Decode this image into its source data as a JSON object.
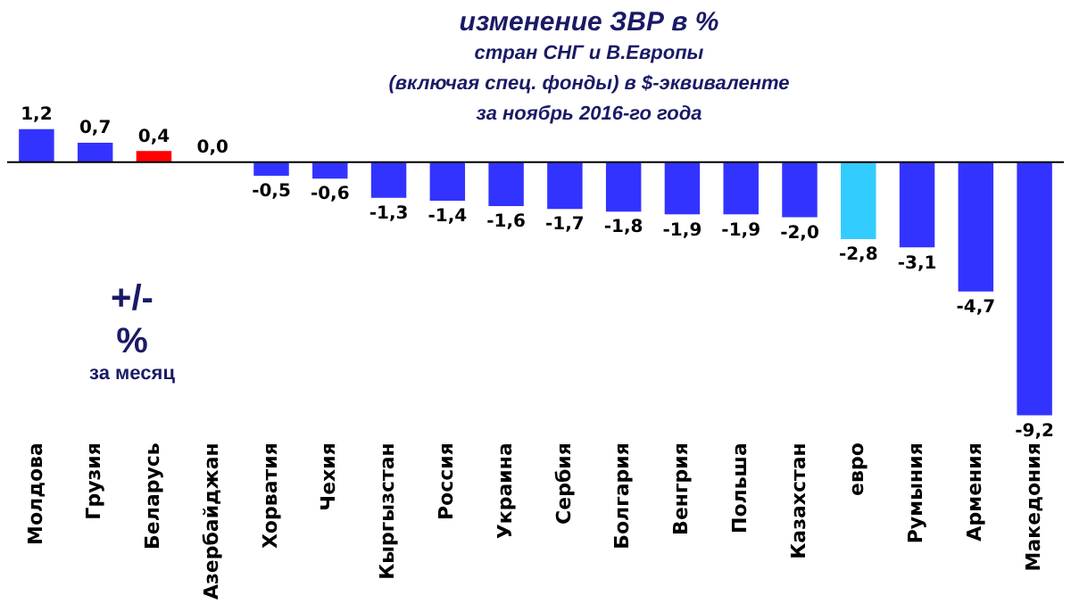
{
  "chart_data": {
    "type": "bar",
    "title": "изменение  ЗВР в %",
    "subtitle": "стран СНГ и В.Европы\n(включая  спец. фонды) в $-эквиваленте\nза ноябрь 2016-го года",
    "categories": [
      "Молдова",
      "Грузия",
      "Беларусь",
      "Азербайджан",
      "Хорватия",
      "Чехия",
      "Кыргызстан",
      "Россия",
      "Украина",
      "Сербия",
      "Болгария",
      "Венгрия",
      "Польша",
      "Казахстан",
      "евро",
      "Румыния",
      "Армения",
      "Македония"
    ],
    "values": [
      1.2,
      0.7,
      0.4,
      0.0,
      -0.5,
      -0.6,
      -1.3,
      -1.4,
      -1.6,
      -1.7,
      -1.8,
      -1.9,
      -1.9,
      -2.0,
      -2.8,
      -3.1,
      -4.7,
      -9.2
    ],
    "colors": [
      "#3333ff",
      "#3333ff",
      "#ff0000",
      "#3333ff",
      "#3333ff",
      "#3333ff",
      "#3333ff",
      "#3333ff",
      "#3333ff",
      "#3333ff",
      "#3333ff",
      "#3333ff",
      "#3333ff",
      "#3333ff",
      "#33ccff",
      "#3333ff",
      "#3333ff",
      "#3333ff"
    ],
    "value_labels": [
      "1,2",
      "0,7",
      "0,4",
      "0,0",
      "-0,5",
      "-0,6",
      "-1,3",
      "-1,4",
      "-1,6",
      "-1,7",
      "-1,8",
      "-1,9",
      "-1,9",
      "-2,0",
      "-2,8",
      "-3,1",
      "-4,7",
      "-9,2"
    ],
    "annotations": [
      "+/-",
      "%",
      "за месяц"
    ],
    "grid": false,
    "legend": false
  }
}
